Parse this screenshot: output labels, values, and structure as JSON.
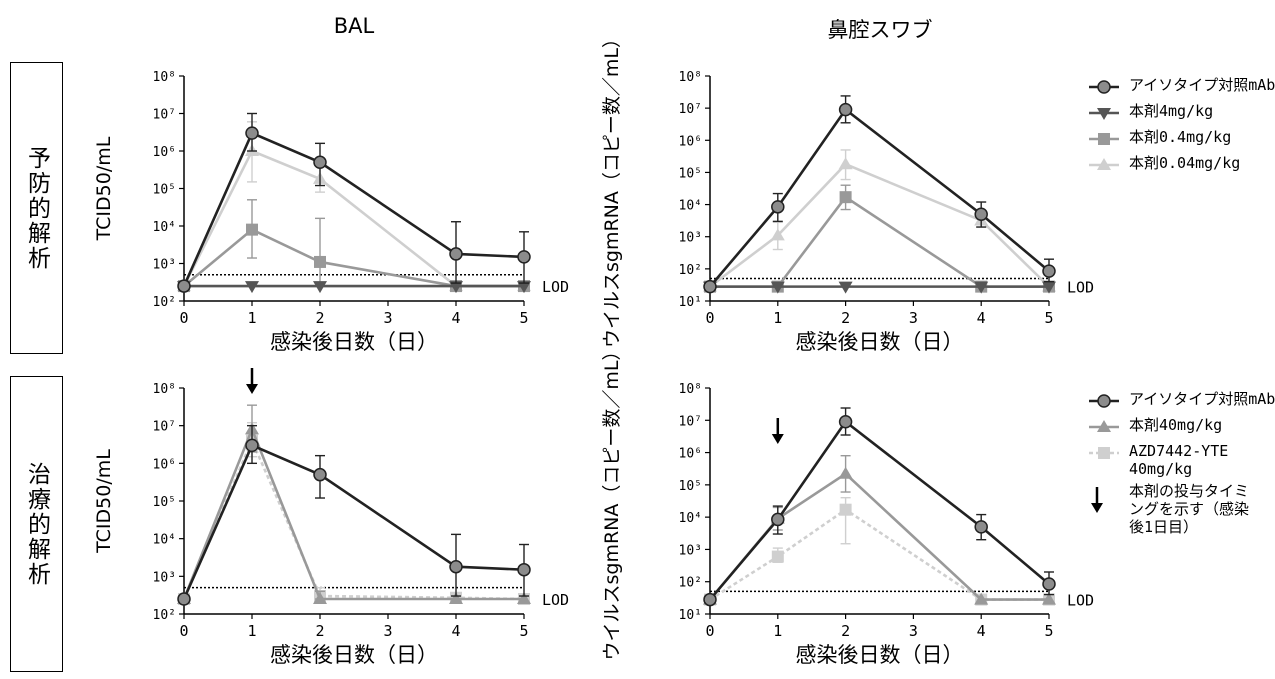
{
  "columns": {
    "left": "BAL",
    "right": "鼻腔スワブ"
  },
  "rows": {
    "top": "予防的解析",
    "bottom": "治療的解析"
  },
  "legend_top": [
    {
      "label": "アイソタイプ対照mAb",
      "color": "#222222",
      "marker": "circle",
      "dash": false
    },
    {
      "label": "本剤4mg/kg",
      "color": "#555555",
      "marker": "tri-down",
      "dash": false
    },
    {
      "label": "本剤0.4mg/kg",
      "color": "#999999",
      "marker": "square",
      "dash": false
    },
    {
      "label": "本剤0.04mg/kg",
      "color": "#cfcfcf",
      "marker": "tri-up",
      "dash": false
    }
  ],
  "legend_bottom": [
    {
      "label": "アイソタイプ対照mAb",
      "color": "#222222",
      "marker": "circle",
      "dash": false
    },
    {
      "label": "本剤40mg/kg",
      "color": "#999999",
      "marker": "tri-up",
      "dash": false
    },
    {
      "label": "AZD7442-YTE 40mg/kg",
      "color": "#cfcfcf",
      "marker": "square",
      "dash": true
    },
    {
      "label": "本剤の投与タイミングを示す（感染後1日目）",
      "color": "#000000",
      "marker": "arrow",
      "dash": false
    }
  ],
  "chart_data": [
    {
      "panel": "BAL-予防的解析",
      "type": "line",
      "xlabel": "感染後日数（日）",
      "ylabel": "TCID50/mL",
      "yscale": "log",
      "ylim": [
        100,
        100000000
      ],
      "xlim": [
        0,
        5
      ],
      "x_ticks": [
        "0",
        "1",
        "2",
        "3",
        "4",
        "5"
      ],
      "y_ticks": [
        "10²",
        "10³",
        "10⁴",
        "10⁵",
        "10⁶",
        "10⁷",
        "10⁸"
      ],
      "lod": {
        "label": "LOD",
        "value": 500,
        "floor": 250
      },
      "arrow_x": null,
      "x": [
        0,
        1,
        2,
        4,
        5
      ],
      "series": [
        {
          "name": "アイソタイプ対照mAb",
          "color": "#222222",
          "marker": "circle",
          "dash": false,
          "values": [
            250,
            3000000,
            500000,
            1800,
            1500
          ],
          "err_hi": [
            250,
            10000000,
            1600000,
            13000,
            7000
          ],
          "err_lo": [
            250,
            1000000,
            120000,
            300,
            300
          ]
        },
        {
          "name": "本剤4mg/kg",
          "color": "#555555",
          "marker": "tri-down",
          "dash": false,
          "values": [
            250,
            250,
            250,
            250,
            250
          ],
          "err_hi": [
            250,
            250,
            250,
            250,
            250
          ],
          "err_lo": [
            250,
            250,
            250,
            250,
            250
          ]
        },
        {
          "name": "本剤0.4mg/kg",
          "color": "#999999",
          "marker": "square",
          "dash": false,
          "values": [
            250,
            8000,
            1100,
            250,
            250
          ],
          "err_hi": [
            250,
            50000,
            16000,
            250,
            250
          ],
          "err_lo": [
            250,
            1400,
            300,
            250,
            250
          ]
        },
        {
          "name": "本剤0.04mg/kg",
          "color": "#cfcfcf",
          "marker": "tri-up",
          "dash": false,
          "values": [
            250,
            1000000,
            180000,
            250,
            250
          ],
          "err_hi": [
            250,
            6000000,
            600000,
            250,
            250
          ],
          "err_lo": [
            250,
            150000,
            80000,
            250,
            250
          ]
        }
      ]
    },
    {
      "panel": "鼻腔スワブ-予防的解析",
      "type": "line",
      "xlabel": "感染後日数（日）",
      "ylabel": "ウイルスsgmRNA（コピー数／mL）",
      "yscale": "log",
      "ylim": [
        10,
        100000000
      ],
      "xlim": [
        0,
        5
      ],
      "x_ticks": [
        "0",
        "1",
        "2",
        "3",
        "4",
        "5"
      ],
      "y_ticks": [
        "10¹",
        "10²",
        "10³",
        "10⁴",
        "10⁵",
        "10⁶",
        "10⁷",
        "10⁸"
      ],
      "lod": {
        "label": "LOD",
        "value": 50,
        "floor": 28
      },
      "arrow_x": null,
      "x": [
        0,
        1,
        2,
        4,
        5
      ],
      "series": [
        {
          "name": "アイソタイプ対照mAb",
          "color": "#222222",
          "marker": "circle",
          "dash": false,
          "values": [
            28,
            8500,
            9000000,
            5000,
            85
          ],
          "err_hi": [
            28,
            22000,
            24000000,
            12000,
            200
          ],
          "err_lo": [
            28,
            3000,
            3500000,
            2000,
            40
          ]
        },
        {
          "name": "本剤4mg/kg",
          "color": "#555555",
          "marker": "tri-down",
          "dash": false,
          "values": [
            28,
            28,
            28,
            28,
            28
          ],
          "err_hi": [
            28,
            28,
            28,
            28,
            28
          ],
          "err_lo": [
            28,
            28,
            28,
            28,
            28
          ]
        },
        {
          "name": "本剤0.4mg/kg",
          "color": "#999999",
          "marker": "square",
          "dash": false,
          "values": [
            28,
            28,
            17000,
            28,
            28
          ],
          "err_hi": [
            28,
            28,
            40000,
            28,
            28
          ],
          "err_lo": [
            28,
            28,
            7000,
            28,
            28
          ]
        },
        {
          "name": "本剤0.04mg/kg",
          "color": "#cfcfcf",
          "marker": "tri-up",
          "dash": false,
          "values": [
            28,
            1100,
            180000,
            3200,
            28
          ],
          "err_hi": [
            28,
            2800,
            500000,
            5000,
            28
          ],
          "err_lo": [
            28,
            400,
            60000,
            2000,
            28
          ]
        }
      ]
    },
    {
      "panel": "BAL-治療的解析",
      "type": "line",
      "xlabel": "感染後日数（日）",
      "ylabel": "TCID50/mL",
      "yscale": "log",
      "ylim": [
        100,
        100000000
      ],
      "xlim": [
        0,
        5
      ],
      "x_ticks": [
        "0",
        "1",
        "2",
        "3",
        "4",
        "5"
      ],
      "y_ticks": [
        "10²",
        "10³",
        "10⁴",
        "10⁵",
        "10⁶",
        "10⁷",
        "10⁸"
      ],
      "lod": {
        "label": "LOD",
        "value": 500,
        "floor": 250
      },
      "arrow_x": 1,
      "x": [
        0,
        1,
        2,
        4,
        5
      ],
      "series": [
        {
          "name": "アイソタイプ対照mAb",
          "color": "#222222",
          "marker": "circle",
          "dash": false,
          "values": [
            250,
            3000000,
            500000,
            1800,
            1500
          ],
          "err_hi": [
            250,
            10000000,
            1600000,
            13000,
            7000
          ],
          "err_lo": [
            250,
            1000000,
            120000,
            300,
            300
          ]
        },
        {
          "name": "本剤40mg/kg",
          "color": "#999999",
          "marker": "tri-up",
          "dash": false,
          "values": [
            250,
            8000000,
            250,
            250,
            250
          ],
          "err_hi": [
            250,
            35000000,
            400,
            250,
            250
          ],
          "err_lo": [
            250,
            2000000,
            250,
            250,
            250
          ]
        },
        {
          "name": "AZD7442-YTE 40mg/kg",
          "color": "#cfcfcf",
          "marker": "square",
          "dash": true,
          "values": [
            250,
            4000000,
            300,
            270,
            250
          ],
          "err_hi": [
            250,
            12000000,
            500,
            300,
            250
          ],
          "err_lo": [
            250,
            1500000,
            250,
            250,
            250
          ]
        }
      ]
    },
    {
      "panel": "鼻腔スワブ-治療的解析",
      "type": "line",
      "xlabel": "感染後日数（日）",
      "ylabel": "ウイルスsgmRNA（コピー数／mL）",
      "yscale": "log",
      "ylim": [
        10,
        100000000
      ],
      "xlim": [
        0,
        5
      ],
      "x_ticks": [
        "0",
        "1",
        "2",
        "3",
        "4",
        "5"
      ],
      "y_ticks": [
        "10¹",
        "10²",
        "10³",
        "10⁴",
        "10⁵",
        "10⁶",
        "10⁷",
        "10⁸"
      ],
      "lod": {
        "label": "LOD",
        "value": 50,
        "floor": 28
      },
      "arrow_x": 1,
      "x": [
        0,
        1,
        2,
        4,
        5
      ],
      "series": [
        {
          "name": "アイソタイプ対照mAb",
          "color": "#222222",
          "marker": "circle",
          "dash": false,
          "values": [
            28,
            8500,
            9000000,
            5000,
            85
          ],
          "err_hi": [
            28,
            22000,
            24000000,
            12000,
            200
          ],
          "err_lo": [
            28,
            3000,
            3500000,
            2000,
            40
          ]
        },
        {
          "name": "本剤40mg/kg",
          "color": "#999999",
          "marker": "tri-up",
          "dash": false,
          "values": [
            28,
            9000,
            220000,
            28,
            28
          ],
          "err_hi": [
            28,
            20000,
            800000,
            28,
            28
          ],
          "err_lo": [
            28,
            4000,
            60000,
            28,
            28
          ]
        },
        {
          "name": "AZD7442-YTE 40mg/kg",
          "color": "#cfcfcf",
          "marker": "square",
          "dash": true,
          "values": [
            28,
            600,
            17000,
            28,
            28
          ],
          "err_hi": [
            28,
            1100,
            40000,
            28,
            28
          ],
          "err_lo": [
            28,
            400,
            1500,
            28,
            28
          ]
        }
      ]
    }
  ]
}
